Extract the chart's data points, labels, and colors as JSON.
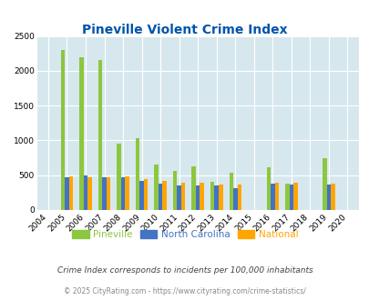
{
  "title": "Pineville Violent Crime Index",
  "years": [
    2004,
    2005,
    2006,
    2007,
    2008,
    2009,
    2010,
    2011,
    2012,
    2013,
    2014,
    2015,
    2016,
    2017,
    2018,
    2019,
    2020
  ],
  "pineville": [
    0,
    2300,
    2190,
    2160,
    960,
    1030,
    650,
    560,
    630,
    410,
    540,
    0,
    615,
    385,
    0,
    745,
    0
  ],
  "north_carolina": [
    0,
    475,
    490,
    475,
    475,
    415,
    375,
    350,
    355,
    350,
    315,
    0,
    375,
    370,
    0,
    370,
    0
  ],
  "national": [
    0,
    480,
    475,
    475,
    480,
    445,
    415,
    390,
    390,
    370,
    370,
    0,
    395,
    390,
    0,
    385,
    0
  ],
  "color_pineville": "#8dc63f",
  "color_nc": "#4472c4",
  "color_national": "#ffa500",
  "bg_color": "#d6e8ed",
  "fig_bg": "#ffffff",
  "ylim": [
    0,
    2500
  ],
  "yticks": [
    0,
    500,
    1000,
    1500,
    2000,
    2500
  ],
  "title_color": "#0055aa",
  "title_fontsize": 10,
  "legend_labels": [
    "Pineville",
    "North Carolina",
    "National"
  ],
  "footer1": "Crime Index corresponds to incidents per 100,000 inhabitants",
  "footer2": "© 2025 CityRating.com - https://www.cityrating.com/crime-statistics/",
  "bar_width": 0.22,
  "figsize": [
    4.06,
    3.3
  ],
  "dpi": 100
}
